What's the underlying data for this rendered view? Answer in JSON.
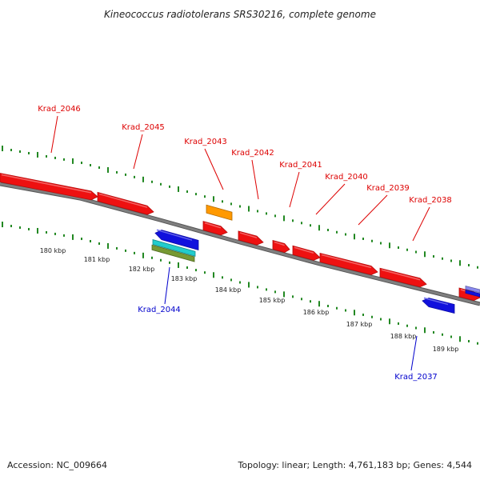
{
  "title": "Kineococcus radiotolerans SRS30216, complete genome",
  "footer": {
    "accession": "Accession: NC_009664",
    "stats": "Topology: linear; Length: 4,761,183 bp; Genes: 4,544"
  },
  "colors": {
    "forward_gene": "#ee1111",
    "reverse_gene": "#1111dd",
    "forward_label": "#dd0000",
    "reverse_label": "#0000cc",
    "backbone": "#808080",
    "tick": "#228822",
    "orange_feature": "#ff9900",
    "cyan_feature": "#22cccc",
    "olive_feature": "#779933"
  },
  "scale": {
    "unit": "kbp",
    "ticks": [
      {
        "label": "180 kbp"
      },
      {
        "label": "181 kbp"
      },
      {
        "label": "182 kbp"
      },
      {
        "label": "183 kbp"
      },
      {
        "label": "184 kbp"
      },
      {
        "label": "185 kbp"
      },
      {
        "label": "186 kbp"
      },
      {
        "label": "187 kbp"
      },
      {
        "label": "188 kbp"
      },
      {
        "label": "189 kbp"
      }
    ]
  },
  "genes": [
    {
      "label": "Krad_2046",
      "strand": "forward"
    },
    {
      "label": "Krad_2045",
      "strand": "forward"
    },
    {
      "label": "Krad_2043",
      "strand": "forward"
    },
    {
      "label": "Krad_2042",
      "strand": "forward"
    },
    {
      "label": "Krad_2041",
      "strand": "forward"
    },
    {
      "label": "Krad_2040",
      "strand": "forward"
    },
    {
      "label": "Krad_2039",
      "strand": "forward"
    },
    {
      "label": "Krad_2038",
      "strand": "forward"
    },
    {
      "label": "Krad_2044",
      "strand": "reverse"
    },
    {
      "label": "Krad_2037",
      "strand": "reverse"
    }
  ]
}
